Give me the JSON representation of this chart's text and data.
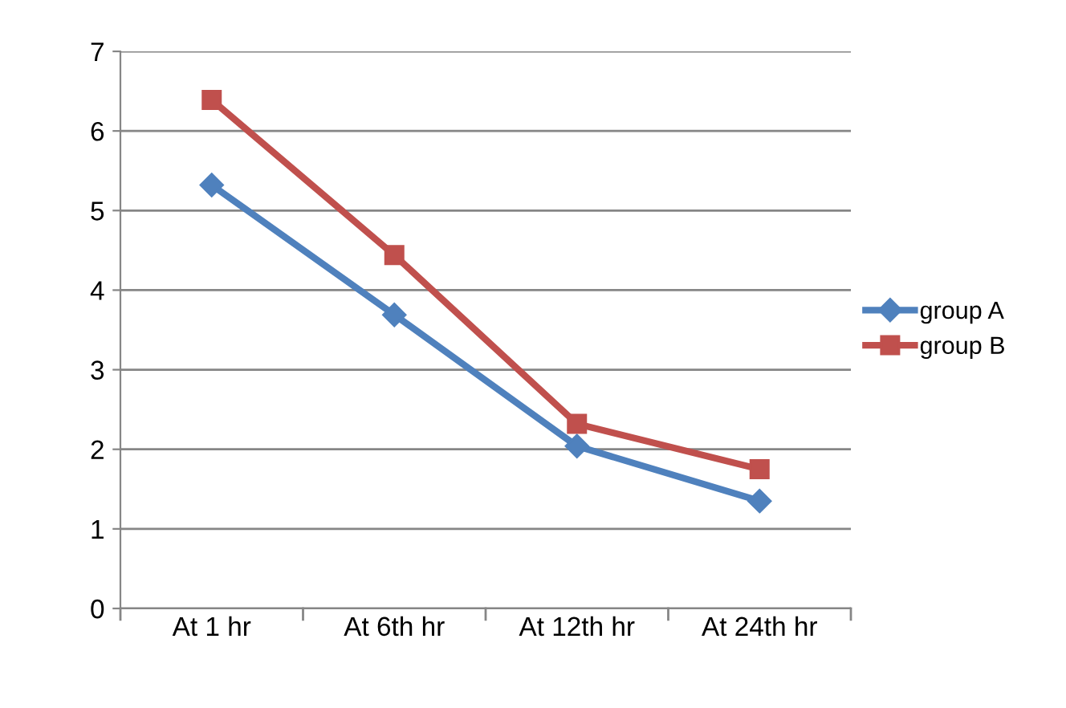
{
  "chart_data": {
    "type": "line",
    "categories": [
      "At 1 hr",
      "At 6th hr",
      "At 12th hr",
      "At 24th hr"
    ],
    "series": [
      {
        "name": "group A",
        "color": "#4f81bd",
        "marker": "diamond",
        "values": [
          5.32,
          3.69,
          2.04,
          1.35
        ]
      },
      {
        "name": "group B",
        "color": "#c0504d",
        "marker": "square",
        "values": [
          6.39,
          4.44,
          2.32,
          1.75
        ]
      }
    ],
    "ylim": [
      0,
      7
    ],
    "yticks": [
      0,
      1,
      2,
      3,
      4,
      5,
      6,
      7
    ],
    "grid": "y",
    "legend": "right",
    "line_style": "solid"
  }
}
